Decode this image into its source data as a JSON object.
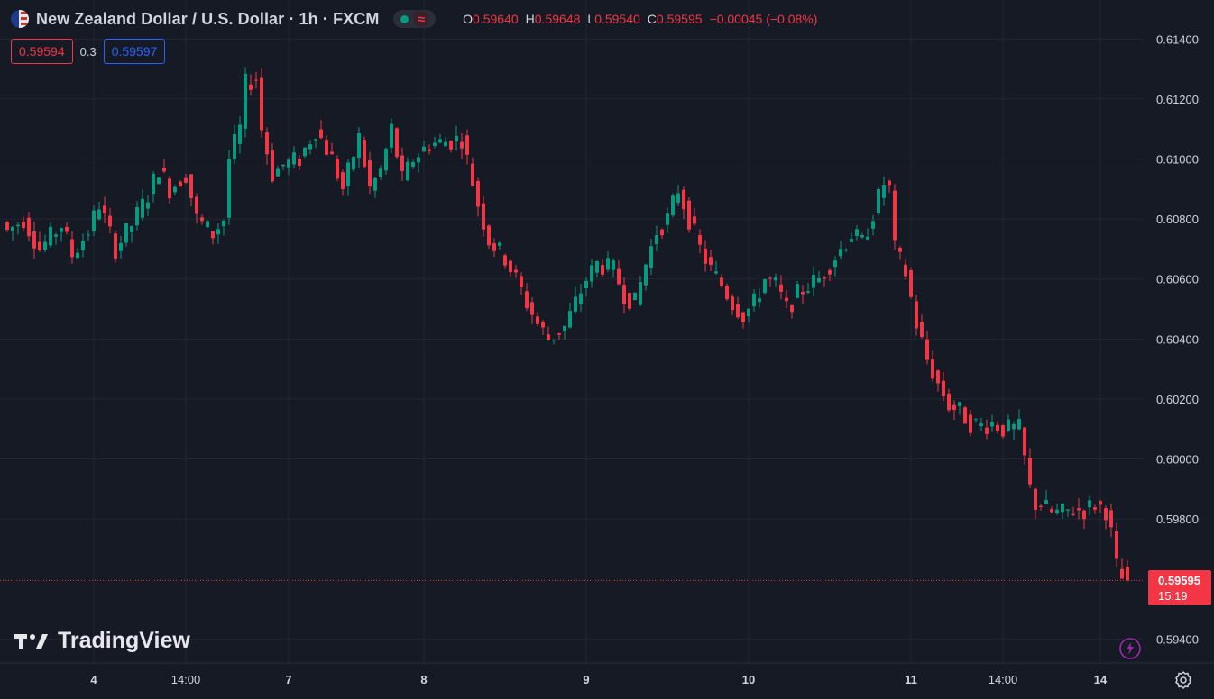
{
  "header": {
    "symbol": "New Zealand Dollar / U.S. Dollar · 1h · FXCM",
    "flag_icon": "nzd-usd-flag-icon",
    "status": {
      "market_icon": "market-open-dot-icon",
      "indicator_icon": "wave-indicator-icon",
      "indicator_glyph": "≈"
    },
    "ohlc": {
      "open_label": "O",
      "open": "0.59640",
      "high_label": "H",
      "high": "0.59648",
      "low_label": "L",
      "low": "0.59540",
      "close_label": "C",
      "close": "0.59595",
      "change": "−0.00045 (−0.08%)"
    }
  },
  "quotes": {
    "bid": "0.59594",
    "spread": "0.3",
    "ask": "0.59597"
  },
  "price_label": {
    "price": "0.59595",
    "countdown": "15:19"
  },
  "branding": {
    "logo_text": "TradingView",
    "logo_icon": "tradingview-logo-icon"
  },
  "icons": {
    "settings": "settings-gear-icon",
    "alert": "lightning-bolt-icon"
  },
  "colors": {
    "background": "#161a25",
    "up": "#089981",
    "down": "#f23645",
    "grid": "#232733",
    "text": "#d1d4dc",
    "ask": "#2962ff"
  },
  "chart_data": {
    "type": "candlestick",
    "title": "New Zealand Dollar / U.S. Dollar · 1h · FXCM",
    "interval": "1h",
    "last_price": 0.59595,
    "y_axis": {
      "min": 0.5932,
      "max": 0.6153,
      "ticks": [
        "0.61400",
        "0.61200",
        "0.61000",
        "0.60800",
        "0.60600",
        "0.60400",
        "0.60200",
        "0.60000",
        "0.59800",
        "0.59400"
      ]
    },
    "x_axis": {
      "ticks": [
        {
          "label": "4",
          "index": 16
        },
        {
          "label": "14:00",
          "index": 33
        },
        {
          "label": "7",
          "index": 52
        },
        {
          "label": "8",
          "index": 77
        },
        {
          "label": "9",
          "index": 107
        },
        {
          "label": "10",
          "index": 137
        },
        {
          "label": "11",
          "index": 167
        },
        {
          "label": "14:00",
          "index": 184
        },
        {
          "label": "14",
          "index": 202
        }
      ]
    },
    "anchors": [
      [
        0,
        0.6076
      ],
      [
        3,
        0.608
      ],
      [
        6,
        0.607
      ],
      [
        10,
        0.6078
      ],
      [
        12,
        0.6068
      ],
      [
        15,
        0.6076
      ],
      [
        17,
        0.6085
      ],
      [
        20,
        0.607
      ],
      [
        23,
        0.6078
      ],
      [
        26,
        0.6088
      ],
      [
        28,
        0.6097
      ],
      [
        30,
        0.609
      ],
      [
        33,
        0.6095
      ],
      [
        35,
        0.608
      ],
      [
        38,
        0.6075
      ],
      [
        40,
        0.608
      ],
      [
        41,
        0.61
      ],
      [
        43,
        0.611
      ],
      [
        44,
        0.6125
      ],
      [
        46,
        0.6127
      ],
      [
        47,
        0.611
      ],
      [
        49,
        0.6095
      ],
      [
        51,
        0.6098
      ],
      [
        54,
        0.61
      ],
      [
        57,
        0.611
      ],
      [
        60,
        0.61
      ],
      [
        62,
        0.609
      ],
      [
        65,
        0.6107
      ],
      [
        67,
        0.609
      ],
      [
        69,
        0.6096
      ],
      [
        71,
        0.611
      ],
      [
        73,
        0.6093
      ],
      [
        75,
        0.61
      ],
      [
        78,
        0.6105
      ],
      [
        82,
        0.6106
      ],
      [
        84,
        0.6107
      ],
      [
        87,
        0.6085
      ],
      [
        89,
        0.6073
      ],
      [
        92,
        0.6067
      ],
      [
        94,
        0.606
      ],
      [
        96,
        0.6052
      ],
      [
        98,
        0.6045
      ],
      [
        100,
        0.604
      ],
      [
        103,
        0.6044
      ],
      [
        105,
        0.6052
      ],
      [
        107,
        0.606
      ],
      [
        109,
        0.6065
      ],
      [
        112,
        0.6063
      ],
      [
        114,
        0.6055
      ],
      [
        116,
        0.6052
      ],
      [
        118,
        0.6065
      ],
      [
        120,
        0.6076
      ],
      [
        122,
        0.608
      ],
      [
        124,
        0.609
      ],
      [
        126,
        0.608
      ],
      [
        128,
        0.607
      ],
      [
        130,
        0.6063
      ],
      [
        132,
        0.6058
      ],
      [
        134,
        0.6052
      ],
      [
        136,
        0.6048
      ],
      [
        138,
        0.6052
      ],
      [
        140,
        0.606
      ],
      [
        142,
        0.6058
      ],
      [
        144,
        0.605
      ],
      [
        146,
        0.6055
      ],
      [
        148,
        0.6058
      ],
      [
        150,
        0.606
      ],
      [
        152,
        0.6065
      ],
      [
        154,
        0.607
      ],
      [
        156,
        0.6075
      ],
      [
        158,
        0.6072
      ],
      [
        160,
        0.6082
      ],
      [
        162,
        0.6092
      ],
      [
        163,
        0.609
      ],
      [
        164,
        0.607
      ],
      [
        166,
        0.6062
      ],
      [
        168,
        0.6045
      ],
      [
        170,
        0.6033
      ],
      [
        172,
        0.6025
      ],
      [
        174,
        0.6018
      ],
      [
        176,
        0.6016
      ],
      [
        178,
        0.6012
      ],
      [
        180,
        0.6011
      ],
      [
        182,
        0.6012
      ],
      [
        184,
        0.601
      ],
      [
        187,
        0.601
      ],
      [
        189,
        0.599
      ],
      [
        190,
        0.5985
      ],
      [
        191,
        0.5985
      ],
      [
        193,
        0.5982
      ],
      [
        195,
        0.5982
      ],
      [
        197,
        0.5983
      ],
      [
        199,
        0.5983
      ],
      [
        201,
        0.5985
      ],
      [
        203,
        0.5983
      ],
      [
        204,
        0.5975
      ],
      [
        205,
        0.5964
      ],
      [
        206,
        0.596
      ],
      [
        207,
        0.596
      ]
    ]
  }
}
